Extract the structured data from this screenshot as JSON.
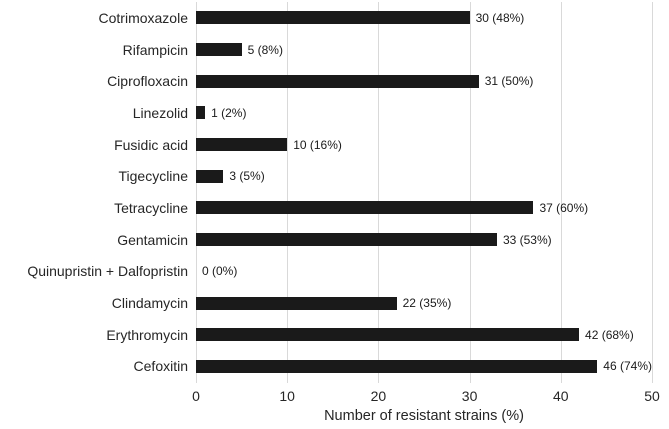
{
  "chart_data": {
    "type": "bar",
    "orientation": "horizontal",
    "categories": [
      "Cotrimoxazole",
      "Rifampicin",
      "Ciprofloxacin",
      "Linezolid",
      "Fusidic acid",
      "Tigecycline",
      "Tetracycline",
      "Gentamicin",
      "Quinupristin + Dalfopristin",
      "Clindamycin",
      "Erythromycin",
      "Cefoxitin"
    ],
    "values": [
      30,
      5,
      31,
      1,
      10,
      3,
      37,
      33,
      0,
      22,
      42,
      46
    ],
    "percentages": [
      48,
      8,
      50,
      2,
      16,
      5,
      60,
      53,
      0,
      35,
      68,
      74
    ],
    "data_labels": [
      "30 (48%)",
      "5 (8%)",
      "31 (50%)",
      "1 (2%)",
      "10 (16%)",
      "3 (5%)",
      "37 (60%)",
      "33 (53%)",
      "0 (0%)",
      "22 (35%)",
      "42 (68%)",
      "46 (74%)"
    ],
    "title": "",
    "xlabel": "Number of resistant strains (%)",
    "ylabel": "",
    "x_ticks": [
      0,
      10,
      20,
      30,
      40,
      50
    ],
    "xlim": [
      0,
      50
    ],
    "grid": "vertical",
    "legend": "none",
    "bar_color": "#1a1a1a",
    "gridline_color": "#d9d9d9",
    "text_color": "#262626",
    "background_color": "#ffffff"
  }
}
